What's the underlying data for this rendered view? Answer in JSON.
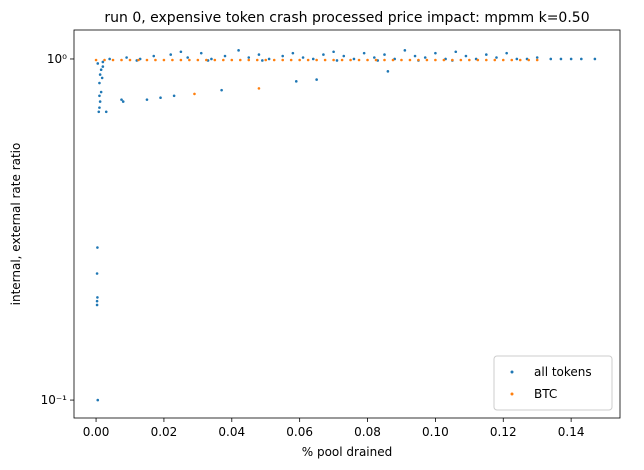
{
  "chart_data": {
    "type": "scatter",
    "title": "run 0, expensive token crash processed price impact: mpmm k=0.50",
    "x_label": "% pool drained",
    "y_label": "internal, external rate ratio",
    "log_y": true,
    "legend": "lower right",
    "xlim": [
      -0.0065,
      0.1544
    ],
    "ylim": [
      0.0886,
      1.216
    ],
    "xticks": [
      {
        "value": 0,
        "label": "0.00"
      },
      {
        "value": 0.02,
        "label": "0.02"
      },
      {
        "value": 0.04,
        "label": "0.04"
      },
      {
        "value": 0.06,
        "label": "0.06"
      },
      {
        "value": 0.08,
        "label": "0.08"
      },
      {
        "value": 0.1,
        "label": "0.10"
      },
      {
        "value": 0.12,
        "label": "0.12"
      },
      {
        "value": 0.14,
        "label": "0.14"
      }
    ],
    "yticks": [
      {
        "value": 0.1,
        "label": "10⁻¹"
      },
      {
        "value": 1,
        "label": "10⁰"
      }
    ],
    "series": [
      {
        "name": "all tokens",
        "color": "#1f77b4",
        "x": [
          0.0005,
          0.0003,
          0.0003,
          0.0004,
          0.0003,
          0.0004,
          0.0008,
          0.001,
          0.0012,
          0.0015,
          0.001,
          0.0012,
          0.0015,
          0.002,
          0.0005,
          0.002,
          0.003,
          0.001,
          0.0018,
          0.008,
          0.0075,
          0.015,
          0.019,
          0.023,
          0.037,
          0.059,
          0.065,
          0.086,
          0.004,
          0.009,
          0.013,
          0.017,
          0.022,
          0.025,
          0.027,
          0.031,
          0.034,
          0.038,
          0.042,
          0.045,
          0.048,
          0.051,
          0.055,
          0.058,
          0.061,
          0.064,
          0.067,
          0.07,
          0.073,
          0.076,
          0.079,
          0.082,
          0.085,
          0.088,
          0.091,
          0.094,
          0.097,
          0.1,
          0.103,
          0.106,
          0.109,
          0.112,
          0.115,
          0.118,
          0.121,
          0.124,
          0.127,
          0.13,
          0.134,
          0.137,
          0.14,
          0.143,
          0.147,
          0.105,
          0.095,
          0.083,
          0.071,
          0.049,
          0.033,
          0.012
        ],
        "values": [
          0.1,
          0.19,
          0.195,
          0.2,
          0.235,
          0.28,
          0.7,
          0.72,
          0.75,
          0.8,
          0.85,
          0.9,
          0.93,
          0.95,
          0.97,
          0.98,
          0.7,
          0.78,
          0.88,
          0.75,
          0.76,
          0.76,
          0.77,
          0.78,
          0.81,
          0.86,
          0.87,
          0.92,
          1.0,
          1.01,
          1.0,
          1.02,
          1.03,
          1.05,
          1.01,
          1.04,
          1.0,
          1.02,
          1.06,
          1.01,
          1.03,
          1.0,
          1.02,
          1.04,
          1.01,
          1.0,
          1.03,
          1.05,
          1.02,
          1.0,
          1.04,
          1.01,
          1.03,
          1.0,
          1.06,
          1.02,
          1.01,
          1.04,
          1.0,
          1.05,
          1.02,
          1.0,
          1.03,
          1.01,
          1.04,
          1.0,
          1.0,
          1.01,
          1.0,
          1.0,
          1.0,
          1.0,
          1.0,
          0.99,
          0.99,
          0.99,
          0.99,
          0.99,
          0.99,
          0.99
        ]
      },
      {
        "name": "BTC",
        "color": "#ff7f0e",
        "x": [
          0,
          0.0025,
          0.005,
          0.0075,
          0.01,
          0.0125,
          0.015,
          0.0175,
          0.02,
          0.0225,
          0.025,
          0.0275,
          0.03,
          0.0325,
          0.035,
          0.0375,
          0.04,
          0.0425,
          0.045,
          0.0475,
          0.05,
          0.0525,
          0.055,
          0.0575,
          0.06,
          0.0625,
          0.065,
          0.0675,
          0.07,
          0.0725,
          0.075,
          0.0775,
          0.08,
          0.0825,
          0.085,
          0.0875,
          0.09,
          0.0925,
          0.095,
          0.0975,
          0.1,
          0.1025,
          0.105,
          0.1075,
          0.11,
          0.1125,
          0.115,
          0.1175,
          0.12,
          0.1225,
          0.125,
          0.1275,
          0.13,
          0.029,
          0.048
        ],
        "values": [
          0.993,
          0.993,
          0.993,
          0.993,
          0.993,
          0.993,
          0.993,
          0.993,
          0.993,
          0.993,
          0.993,
          0.993,
          0.993,
          0.993,
          0.993,
          0.993,
          0.993,
          0.993,
          0.993,
          0.993,
          0.993,
          0.993,
          0.993,
          0.993,
          0.993,
          0.993,
          0.993,
          0.993,
          0.993,
          0.993,
          0.993,
          0.993,
          0.993,
          0.993,
          0.993,
          0.993,
          0.993,
          0.993,
          0.993,
          0.993,
          0.993,
          0.993,
          0.993,
          0.993,
          0.993,
          0.993,
          0.993,
          0.993,
          0.993,
          0.993,
          0.993,
          0.993,
          0.993,
          0.79,
          0.82
        ]
      }
    ]
  }
}
